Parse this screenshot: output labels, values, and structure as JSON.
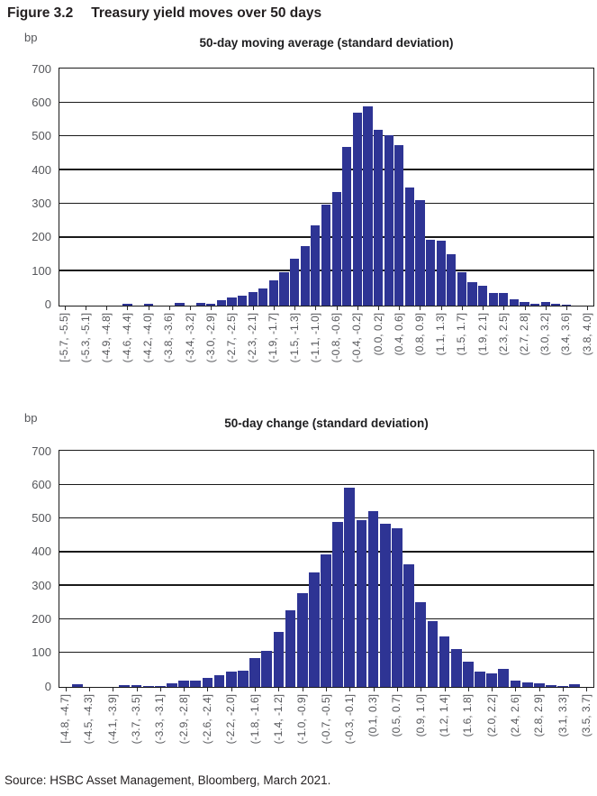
{
  "figure": {
    "label": "Figure 3.2",
    "title": "Treasury yield moves over 50 days"
  },
  "source": {
    "text": "Source: HSBC Asset Management, Bloomberg, March 2021."
  },
  "chart_data": [
    {
      "type": "bar",
      "title": "50-day moving average (standard deviation)",
      "unit_label": "bp",
      "ylim": [
        0,
        700
      ],
      "yticks": [
        0,
        100,
        200,
        300,
        400,
        500,
        600,
        700
      ],
      "grid": true,
      "legend_position": "none",
      "bar_color": "#2e3494",
      "bin_count": 51,
      "tick_every": 2,
      "x_tick_label_rotation": "vertical",
      "tick_labels": [
        "[-5.7, -5.5]",
        "(-5.3, -5.1]",
        "(-4.9, -4.8]",
        "(-4.6, -4.4]",
        "(-4.2, -4.0]",
        "(-3.8, -3.6]",
        "(-3.4, -3.2]",
        "(-3.0, -2.9]",
        "(-2.7, -2.5]",
        "(-2.3, -2.1]",
        "(-1.9, -1.7]",
        "(-1.5, -1.3]",
        "(-1.1, -1.0]",
        "(-0.8, -0.6]",
        "(-0.4, -0.2]",
        "(0.0, 0.2]",
        "(0.4, 0.6]",
        "(0.8, 0.9]",
        "(1.1, 1.3]",
        "(1.5, 1.7]",
        "(1.9, 2.1]",
        "(2.3, 2.5]",
        "(2.7, 2.8]",
        "(3.0, 3.2]",
        "(3.4, 3.6]",
        "(3.8, 4.0]"
      ],
      "values": [
        0,
        0,
        0,
        0,
        0,
        0,
        4,
        0,
        3,
        0,
        0,
        8,
        0,
        7,
        3,
        16,
        23,
        29,
        38,
        49,
        73,
        97,
        137,
        175,
        237,
        298,
        337,
        470,
        571,
        591,
        522,
        504,
        474,
        350,
        312,
        195,
        191,
        150,
        97,
        67,
        58,
        35,
        36,
        18,
        10,
        3,
        9,
        5,
        2,
        0,
        0
      ]
    },
    {
      "type": "bar",
      "title": "50-day change (standard deviation)",
      "unit_label": "bp",
      "ylim": [
        0,
        700
      ],
      "yticks": [
        0,
        100,
        200,
        300,
        400,
        500,
        600,
        700
      ],
      "grid": true,
      "legend_position": "none",
      "bar_color": "#2e3494",
      "bin_count": 45,
      "tick_every": 2,
      "x_tick_label_rotation": "vertical",
      "tick_labels": [
        "[-4.8, -4.7]",
        "(-4.5, -4.3]",
        "(-4.1, -3.9]",
        "(-3.7, -3.5]",
        "(-3.3, -3.1]",
        "(-2.9, -2.8]",
        "(-2.6, -2.4]",
        "(-2.2, -2.0]",
        "(-1.8, -1.6]",
        "(-1.4, -1.2]",
        "(-1.0, -0.9]",
        "(-0.7, -0.5]",
        "(-0.3, -0.1]",
        "(0.1, 0.3]",
        "(0.5, 0.7]",
        "(0.9, 1.0]",
        "(1.2, 1.4]",
        "(1.6, 1.8]",
        "(2.0, 2.2]",
        "(2.4, 2.6]",
        "(2.8, 2.9]",
        "(3.1, 3.3]",
        "(3.5, 3.7]"
      ],
      "values": [
        0,
        7,
        0,
        0,
        0,
        5,
        5,
        4,
        4,
        11,
        18,
        18,
        26,
        34,
        46,
        48,
        85,
        107,
        164,
        229,
        278,
        340,
        394,
        492,
        594,
        495,
        524,
        485,
        471,
        366,
        252,
        195,
        150,
        112,
        74,
        46,
        41,
        55,
        19,
        13,
        11,
        5,
        2,
        7,
        0
      ]
    }
  ]
}
